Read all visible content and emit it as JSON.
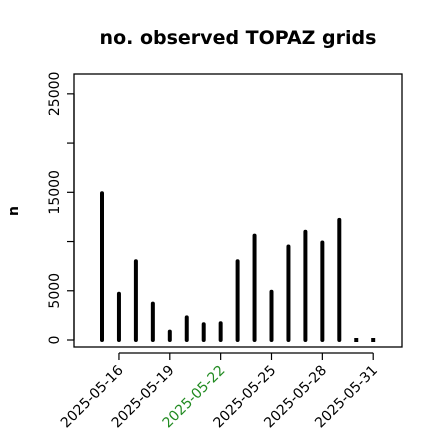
{
  "chart_data": {
    "type": "bar",
    "title": "no. observed TOPAZ grids",
    "xlabel": "",
    "ylabel": "n",
    "ylim": [
      0,
      26000
    ],
    "yticks": [
      0,
      5000,
      15000,
      25000
    ],
    "ytick_labels": [
      "0",
      "5000",
      "15000",
      "25000"
    ],
    "yticks_minor": [
      10000,
      20000
    ],
    "x_ticks": [
      {
        "date": "2025-05-16",
        "label": "2025-05-16",
        "color": "#000000"
      },
      {
        "date": "2025-05-19",
        "label": "2025-05-19",
        "color": "#000000"
      },
      {
        "date": "2025-05-22",
        "label": "2025-05-22",
        "color": "#228B22"
      },
      {
        "date": "2025-05-25",
        "label": "2025-05-25",
        "color": "#000000"
      },
      {
        "date": "2025-05-28",
        "label": "2025-05-28",
        "color": "#000000"
      },
      {
        "date": "2025-05-31",
        "label": "2025-05-31",
        "color": "#000000"
      }
    ],
    "categories": [
      "2025-05-15",
      "2025-05-16",
      "2025-05-17",
      "2025-05-18",
      "2025-05-19",
      "2025-05-20",
      "2025-05-21",
      "2025-05-22",
      "2025-05-23",
      "2025-05-24",
      "2025-05-25",
      "2025-05-26",
      "2025-05-27",
      "2025-05-28",
      "2025-05-29",
      "2025-05-30",
      "2025-05-31"
    ],
    "values": [
      14900,
      4700,
      8000,
      3700,
      850,
      2300,
      1600,
      1700,
      8000,
      10600,
      4900,
      9500,
      11000,
      9900,
      12200,
      0,
      0
    ],
    "grid": false,
    "legend": "none"
  }
}
